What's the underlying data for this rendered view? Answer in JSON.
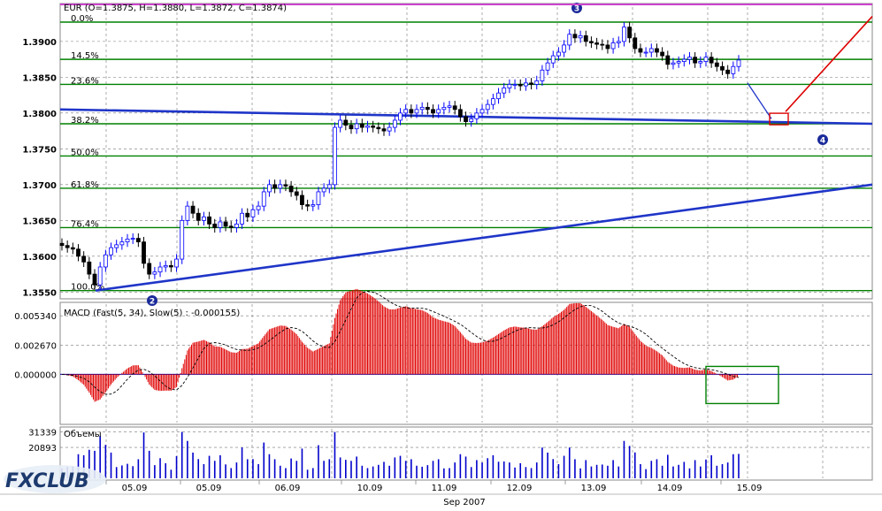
{
  "chart_data": [
    {
      "type": "candlestick",
      "title": "EUR (O=1.3875, H=1.3880, L=1.3872, C=1.3874)",
      "ylim": [
        1.3543,
        1.3948
      ],
      "yticks": [
        "1.3900",
        "1.3850",
        "1.3800",
        "1.3750",
        "1.3700",
        "1.3650",
        "1.3600",
        "1.3550"
      ],
      "fib_levels": [
        {
          "label": "0.0%",
          "value": 1.3927
        },
        {
          "label": "14.5%",
          "value": 1.3875
        },
        {
          "label": "23.6%",
          "value": 1.384
        },
        {
          "label": "38.2%",
          "value": 1.3785
        },
        {
          "label": "50.0%",
          "value": 1.374
        },
        {
          "label": "61.8%",
          "value": 1.3695
        },
        {
          "label": "76.4%",
          "value": 1.364
        },
        {
          "label": "100.0%",
          "value": 1.3552
        }
      ],
      "wave_labels": [
        "2",
        "3",
        "4"
      ],
      "colors": {
        "bull": "#0000ff",
        "bear": "#000000",
        "fib": "#008000",
        "trend": "#1f35c8",
        "target": "#dd0000",
        "title_line": "#cc44cc"
      },
      "closes": [
        1.3615,
        1.3612,
        1.361,
        1.36,
        1.3592,
        1.3575,
        1.356,
        1.3585,
        1.3602,
        1.3612,
        1.3616,
        1.362,
        1.3624,
        1.3625,
        1.362,
        1.359,
        1.3575,
        1.3578,
        1.3585,
        1.3587,
        1.3585,
        1.3596,
        1.365,
        1.367,
        1.366,
        1.365,
        1.3655,
        1.3645,
        1.364,
        1.3648,
        1.3642,
        1.364,
        1.3645,
        1.366,
        1.3655,
        1.3665,
        1.367,
        1.369,
        1.37,
        1.3695,
        1.37,
        1.3698,
        1.369,
        1.3685,
        1.3672,
        1.367,
        1.3672,
        1.369,
        1.3695,
        1.37,
        1.378,
        1.379,
        1.3783,
        1.3778,
        1.3785,
        1.378,
        1.3782,
        1.378,
        1.3778,
        1.3775,
        1.378,
        1.379,
        1.38,
        1.3805,
        1.38,
        1.3805,
        1.3808,
        1.3805,
        1.38,
        1.3805,
        1.3808,
        1.381,
        1.3805,
        1.3795,
        1.3788,
        1.3792,
        1.38,
        1.3805,
        1.3812,
        1.382,
        1.3828,
        1.3835,
        1.384,
        1.384,
        1.3838,
        1.3842,
        1.384,
        1.3845,
        1.386,
        1.387,
        1.388,
        1.3885,
        1.3895,
        1.391,
        1.3905,
        1.3908,
        1.39,
        1.3898,
        1.3896,
        1.3895,
        1.389,
        1.3898,
        1.39,
        1.392,
        1.3905,
        1.389,
        1.3885,
        1.3885,
        1.389,
        1.3885,
        1.388,
        1.3868,
        1.387,
        1.3872,
        1.3875,
        1.3878,
        1.387,
        1.3872,
        1.3878,
        1.387,
        1.3865,
        1.386,
        1.3855,
        1.3865,
        1.3874
      ]
    },
    {
      "type": "histogram",
      "title": "MACD (Fast(5, 34), Slow(5) : -0.000155)",
      "ylim": [
        -0.0044,
        0.0064
      ],
      "yticks": [
        "0.005340",
        "0.002670",
        "0.000000"
      ]
    },
    {
      "type": "bar",
      "title": "Объемы",
      "yticks": [
        "31339",
        "20893"
      ],
      "ylim": [
        0,
        33500
      ]
    }
  ],
  "x_axis": {
    "labels": [
      "05.09",
      "05.09",
      "06.09",
      "10.09",
      "11.09",
      "12.09",
      "13.09",
      "14.09",
      "15.09"
    ],
    "month": "Sep 2007"
  },
  "logo": "FXCLUB"
}
